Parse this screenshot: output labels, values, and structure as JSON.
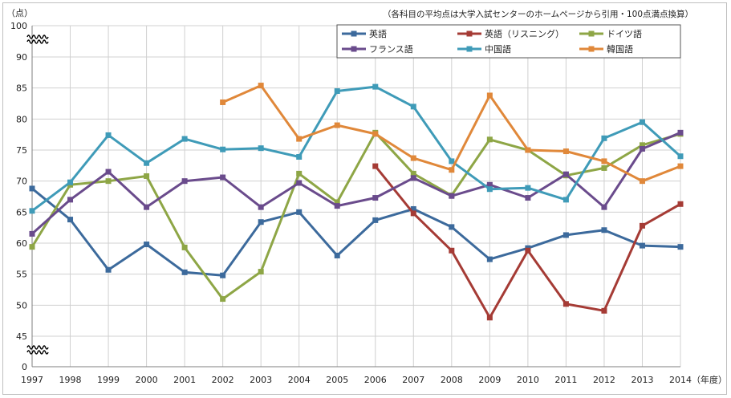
{
  "chart_data": {
    "type": "line",
    "title": "",
    "ylabel": "（点）",
    "xlabel": "（年度）",
    "note": "（各科目の平均点は大学入試センターのホームページから引用・100点満点換算）",
    "categories": [
      "1997",
      "1998",
      "1999",
      "2000",
      "2001",
      "2002",
      "2003",
      "2004",
      "2005",
      "2006",
      "2007",
      "2008",
      "2009",
      "2010",
      "2011",
      "2012",
      "2013",
      "2014"
    ],
    "y_ticks": [
      "0",
      "45",
      "50",
      "55",
      "60",
      "65",
      "70",
      "75",
      "80",
      "85",
      "90",
      "100"
    ],
    "axis_break": true,
    "grid": true,
    "legend_position": "top-right",
    "series": [
      {
        "name": "英語",
        "color": "#3c6a9c",
        "values": [
          68.8,
          63.8,
          55.7,
          59.8,
          55.3,
          54.8,
          63.4,
          65.0,
          58.0,
          63.7,
          65.5,
          62.6,
          57.4,
          59.2,
          61.3,
          62.1,
          59.6,
          59.4
        ]
      },
      {
        "name": "英語（リスニング）",
        "color": "#a53b35",
        "values": [
          null,
          null,
          null,
          null,
          null,
          null,
          null,
          null,
          null,
          72.4,
          64.8,
          58.8,
          48.0,
          58.8,
          50.2,
          49.1,
          62.8,
          66.3
        ]
      },
      {
        "name": "ドイツ語",
        "color": "#8ea646",
        "values": [
          59.4,
          69.4,
          70.0,
          70.8,
          59.3,
          51.0,
          55.4,
          71.2,
          66.6,
          77.8,
          71.2,
          67.7,
          76.7,
          75.0,
          70.9,
          72.1,
          75.8,
          77.6
        ]
      },
      {
        "name": "フランス語",
        "color": "#6a4b8c",
        "values": [
          61.5,
          67.0,
          71.5,
          65.8,
          70.0,
          70.6,
          65.8,
          69.7,
          66.0,
          67.3,
          70.5,
          67.6,
          69.4,
          67.3,
          71.1,
          65.8,
          75.2,
          77.8
        ]
      },
      {
        "name": "中国語",
        "color": "#3f9bb8",
        "values": [
          65.2,
          69.8,
          77.4,
          72.9,
          76.8,
          75.1,
          75.3,
          73.9,
          84.5,
          85.2,
          82.0,
          73.2,
          68.7,
          68.9,
          67.0,
          76.9,
          79.5,
          74.0
        ]
      },
      {
        "name": "韓国語",
        "color": "#e0883a",
        "values": [
          null,
          null,
          null,
          null,
          null,
          82.7,
          85.4,
          76.8,
          79.0,
          77.6,
          73.7,
          71.8,
          83.8,
          75.0,
          74.8,
          73.2,
          70.0,
          72.4
        ]
      }
    ]
  }
}
